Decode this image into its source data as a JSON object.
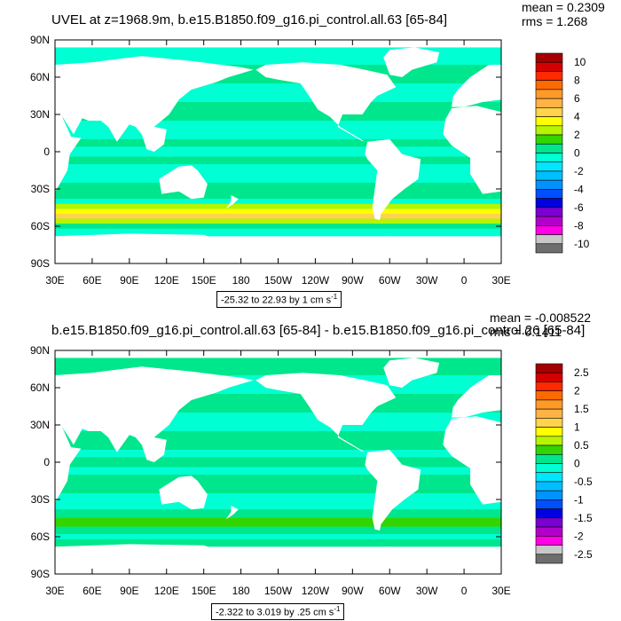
{
  "chart_data": [
    {
      "type": "heatmap",
      "title": "UVEL at z=1968.9m, b.e15.B1850.f09_g16.pi_control.all.63 [65-84]",
      "stats": {
        "mean": "mean = 0.2309",
        "rms": "rms = 1.268"
      },
      "subtitle": {
        "text": "-25.32 to 22.93 by 1 cm s",
        "unit_exp": "-1"
      },
      "xlabel": "",
      "ylabel": "",
      "x_ticks": [
        "30E",
        "60E",
        "90E",
        "120E",
        "150E",
        "180",
        "150W",
        "120W",
        "90W",
        "60W",
        "30W",
        "0",
        "30E"
      ],
      "y_ticks": [
        "90N",
        "60N",
        "30N",
        "0",
        "30S",
        "60S",
        "90S"
      ],
      "xlim": [
        30,
        390
      ],
      "ylim": [
        -90,
        90
      ],
      "colorbar": {
        "colors": [
          "#a50000",
          "#d40000",
          "#ff2a00",
          "#ff6a00",
          "#ff9a28",
          "#ffb347",
          "#ffd34a",
          "#ffff00",
          "#b5f500",
          "#32d500",
          "#00e68c",
          "#00ffd2",
          "#00e6ff",
          "#00bfff",
          "#0093ff",
          "#0050ff",
          "#0000e1",
          "#7b00d4",
          "#b200cc",
          "#ff00e8",
          "#c8c8c8",
          "#6e6e6e"
        ],
        "labels": [
          "10",
          "8",
          "6",
          "4",
          "2",
          "0",
          "-2",
          "-4",
          "-6",
          "-8",
          "-10"
        ]
      }
    },
    {
      "type": "heatmap",
      "title": "b.e15.B1850.f09_g16.pi_control.all.63 [65-84] - b.e15.B1850.f09_g16.pi_control.26 [65-84]",
      "stats": {
        "mean": "mean = -0.008522",
        "rms": "rms = 0.1411"
      },
      "subtitle": {
        "text": "-2.322 to 3.019 by .25 cm s",
        "unit_exp": "-1"
      },
      "xlabel": "",
      "ylabel": "",
      "x_ticks": [
        "30E",
        "60E",
        "90E",
        "120E",
        "150E",
        "180",
        "150W",
        "120W",
        "90W",
        "60W",
        "30W",
        "0",
        "30E"
      ],
      "y_ticks": [
        "90N",
        "60N",
        "30N",
        "0",
        "30S",
        "60S",
        "90S"
      ],
      "xlim": [
        30,
        390
      ],
      "ylim": [
        -90,
        90
      ],
      "colorbar": {
        "colors": [
          "#a50000",
          "#d40000",
          "#ff2a00",
          "#ff6a00",
          "#ff9a28",
          "#ffb347",
          "#ffd34a",
          "#ffff00",
          "#b5f500",
          "#32d500",
          "#00e68c",
          "#00ffd2",
          "#00e6ff",
          "#00bfff",
          "#0093ff",
          "#0050ff",
          "#0000e1",
          "#7b00d4",
          "#b200cc",
          "#ff00e8",
          "#c8c8c8",
          "#6e6e6e"
        ],
        "labels": [
          "2.5",
          "2",
          "1.5",
          "1",
          "0.5",
          "0",
          "-0.5",
          "-1",
          "-1.5",
          "-2",
          "-2.5"
        ]
      }
    }
  ]
}
